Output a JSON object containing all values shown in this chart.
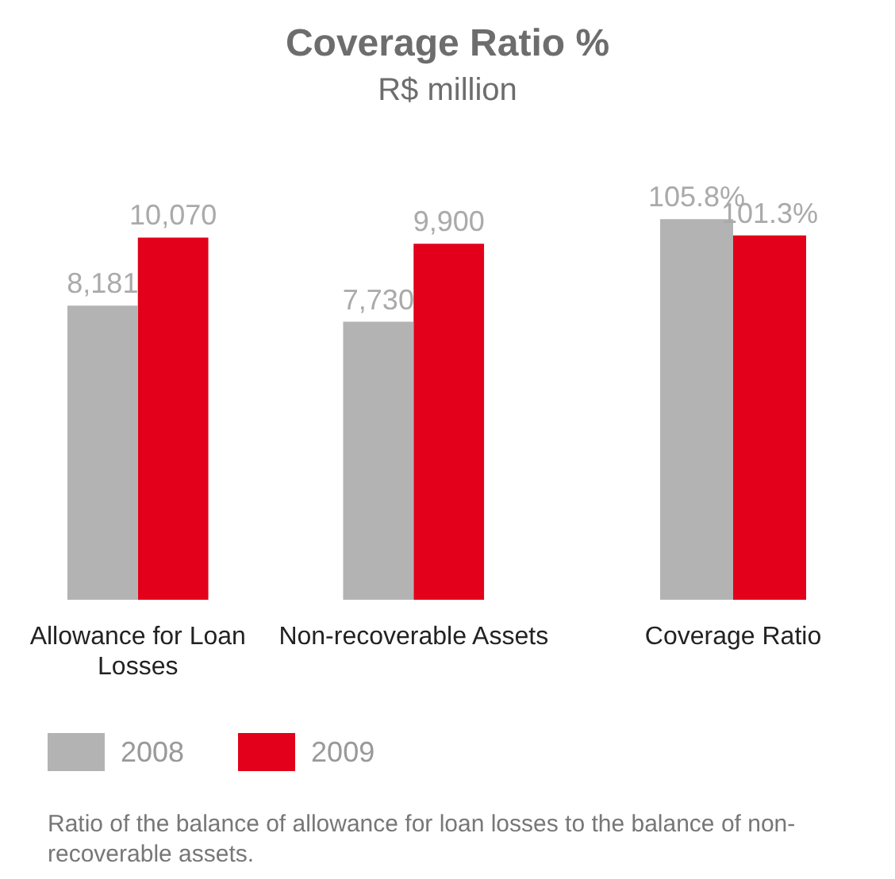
{
  "chart_data": [
    {
      "type": "bar",
      "title": "Coverage Ratio %",
      "subtitle": "R$ million",
      "categories": [
        "Allowance for Loan Losses",
        "Non-recoverable Assets"
      ],
      "series": [
        {
          "name": "2008",
          "color": "#b3b3b3",
          "values": [
            8181,
            7730
          ],
          "value_labels": [
            "8,181",
            "7,730"
          ]
        },
        {
          "name": "2009",
          "color": "#e2001a",
          "values": [
            10070,
            9900
          ],
          "value_labels": [
            "10,070",
            "9,900"
          ]
        }
      ],
      "tick_labels": "x",
      "grid": false,
      "legend": "bottom left",
      "annotations": [
        "Ratio of the balance of allowance for loan losses to the balance of non-recoverable assets."
      ]
    },
    {
      "type": "bar",
      "categories": [
        "Coverage Ratio"
      ],
      "series": [
        {
          "color": "#b3b3b3",
          "values": [
            105.8
          ],
          "value_labels": [
            "105.8%"
          ]
        },
        {
          "color": "#e2001a",
          "values": [
            101.3
          ],
          "value_labels": [
            "101.3%"
          ]
        }
      ],
      "tick_labels": "x",
      "grid": false
    }
  ]
}
